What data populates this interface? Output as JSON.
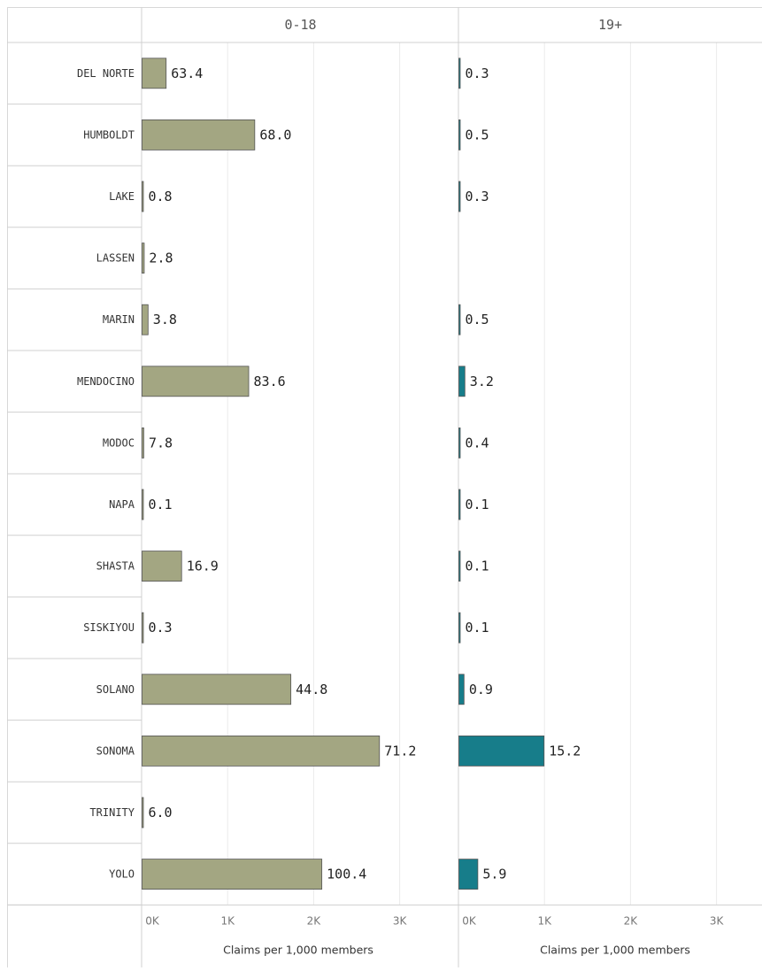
{
  "chart_data": {
    "type": "bar",
    "orientation": "horizontal",
    "categories": [
      "DEL NORTE",
      "HUMBOLDT",
      "LAKE",
      "LASSEN",
      "MARIN",
      "MENDOCINO",
      "MODOC",
      "NAPA",
      "SHASTA",
      "SISKIYOU",
      "SOLANO",
      "SONOMA",
      "TRINITY",
      "YOLO"
    ],
    "panels": [
      {
        "title": "0-18",
        "color": "#a3a682",
        "xlabel": "Claims per 1,000 members",
        "ticks": [
          "0K",
          "1K",
          "2K",
          "3K"
        ],
        "xlim": [
          0,
          3500
        ],
        "bar_values": [
          280,
          1310,
          15,
          25,
          70,
          1240,
          20,
          5,
          460,
          15,
          1730,
          2760,
          15,
          2090
        ],
        "labels": [
          "63.4",
          "68.0",
          "0.8",
          "2.8",
          "3.8",
          "83.6",
          "7.8",
          "0.1",
          "16.9",
          "0.3",
          "44.8",
          "71.2",
          "6.0",
          "100.4"
        ]
      },
      {
        "title": "19+",
        "color": "#177d8a",
        "xlabel": "Claims per 1,000 members",
        "ticks": [
          "0K",
          "1K",
          "2K",
          "3K"
        ],
        "xlim": [
          0,
          3500
        ],
        "bar_values": [
          8,
          8,
          8,
          null,
          8,
          70,
          8,
          8,
          8,
          8,
          60,
          990,
          null,
          220
        ],
        "labels": [
          "0.3",
          "0.5",
          "0.3",
          "",
          "0.5",
          "3.2",
          "0.4",
          "0.1",
          "0.1",
          "0.1",
          "0.9",
          "15.2",
          "",
          "5.9"
        ]
      }
    ],
    "grid": true,
    "legend": "none"
  }
}
